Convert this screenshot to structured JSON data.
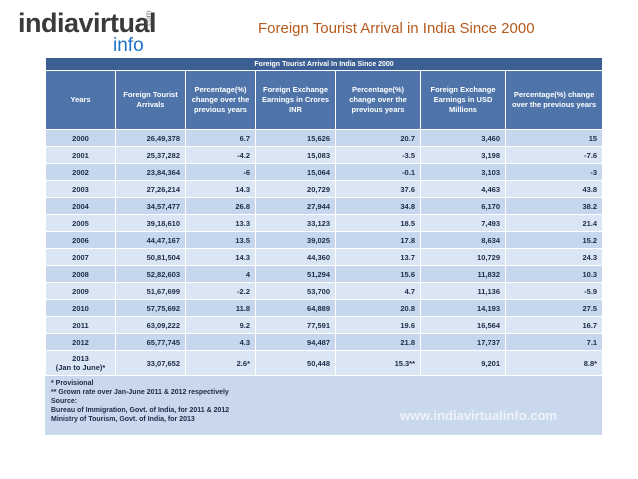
{
  "logo": {
    "main": "indiavirtual",
    "sub": "info",
    "domain": ".com"
  },
  "slide_title": "Foreign Tourist Arrival in India Since 2000",
  "table": {
    "title": "Foreign Tourist Arrival In India Since 2000",
    "headers": [
      "Years",
      "Foreign Tourist Arrivals",
      "Percentage(%) change over the previous years",
      "Foreign Exchange Earnings in Crores INR",
      "Percentage(%) change over the previous years",
      "Foreign Exchange Earnings in USD Millions",
      "Percentage(%) change over the previous years"
    ],
    "rows": [
      [
        "2000",
        "26,49,378",
        "6.7",
        "15,626",
        "20.7",
        "3,460",
        "15"
      ],
      [
        "2001",
        "25,37,282",
        "-4.2",
        "15,083",
        "-3.5",
        "3,198",
        "-7.6"
      ],
      [
        "2002",
        "23,84,364",
        "-6",
        "15,064",
        "-0.1",
        "3,103",
        "-3"
      ],
      [
        "2003",
        "27,26,214",
        "14.3",
        "20,729",
        "37.6",
        "4,463",
        "43.8"
      ],
      [
        "2004",
        "34,57,477",
        "26.8",
        "27,944",
        "34.8",
        "6,170",
        "38.2"
      ],
      [
        "2005",
        "39,18,610",
        "13.3",
        "33,123",
        "18.5",
        "7,493",
        "21.4"
      ],
      [
        "2006",
        "44,47,167",
        "13.5",
        "39,025",
        "17.8",
        "8,634",
        "15.2"
      ],
      [
        "2007",
        "50,81,504",
        "14.3",
        "44,360",
        "13.7",
        "10,729",
        "24.3"
      ],
      [
        "2008",
        "52,82,603",
        "4",
        "51,294",
        "15.6",
        "11,832",
        "10.3"
      ],
      [
        "2009",
        "51,67,699",
        "-2.2",
        "53,700",
        "4.7",
        "11,136",
        "-5.9"
      ],
      [
        "2010",
        "57,75,692",
        "11.8",
        "64,889",
        "20.8",
        "14,193",
        "27.5"
      ],
      [
        "2011",
        "63,09,222",
        "9.2",
        "77,591",
        "19.6",
        "16,564",
        "16.7"
      ],
      [
        "2012",
        "65,77,745",
        "4.3",
        "94,487",
        "21.8",
        "17,737",
        "7.1"
      ],
      [
        [
          "2013",
          "(Jan to June)*"
        ],
        "33,07,652",
        "2.6*",
        "50,448",
        "15.3**",
        "9,201",
        "8.8*"
      ]
    ],
    "notes": [
      "* Provisional",
      "** Grown rate over Jan-June 2011 & 2012 respectively",
      "Source:",
      "Bureau of Immigration, Govt. of India, for 2011 & 2012",
      "Ministry of Tourism, Govt. of India, for 2013"
    ],
    "watermark": "www.indiavirtualinfo.com"
  }
}
